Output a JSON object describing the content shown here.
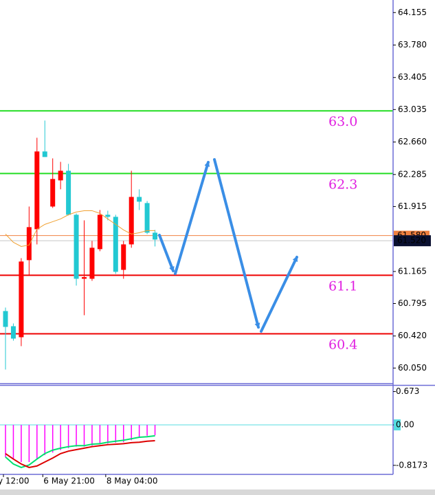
{
  "chart_data": [
    {
      "type": "candlestick",
      "categories": [
        "y 12:00",
        null,
        null,
        null,
        null,
        "6 May 21:00",
        null,
        null,
        null,
        null,
        null,
        null,
        null,
        "8 May 04:00",
        null,
        null,
        null,
        null,
        null,
        null
      ],
      "open": [
        60.708,
        60.533,
        60.406,
        61.296,
        61.653,
        62.551,
        61.915,
        62.217,
        62.328,
        61.82,
        61.081,
        61.081,
        61.423,
        61.82,
        61.796,
        61.184,
        61.478,
        62.026,
        61.955,
        61.613
      ],
      "high": [
        60.748,
        60.565,
        61.319,
        61.915,
        62.709,
        62.908,
        62.471,
        62.431,
        62.408,
        61.836,
        61.756,
        61.518,
        61.875,
        61.867,
        61.82,
        61.518,
        62.328,
        62.114,
        61.979,
        61.645
      ],
      "low": [
        60.033,
        60.366,
        60.303,
        61.121,
        61.478,
        62.487,
        61.899,
        62.114,
        61.812,
        61.002,
        60.66,
        61.057,
        61.399,
        61.756,
        61.137,
        61.081,
        61.439,
        61.875,
        61.597,
        61.454
      ],
      "close": [
        60.525,
        60.39,
        61.28,
        61.677,
        62.551,
        62.487,
        62.233,
        62.328,
        61.82,
        61.081,
        61.1,
        61.439,
        61.82,
        61.796,
        61.161,
        61.478,
        62.026,
        61.971,
        61.613,
        61.534
      ],
      "up_color": "#ff0000",
      "down_color": "#22c8d2",
      "ma_values": [
        61.597,
        61.502,
        61.454,
        61.47,
        61.653,
        61.709,
        61.74,
        61.772,
        61.82,
        61.852,
        61.867,
        61.867,
        61.836,
        61.772,
        61.709,
        61.645,
        61.597,
        61.613,
        61.637,
        61.637
      ],
      "ma_color": "#f0a030",
      "levels": [
        {
          "value": 63.02,
          "label": "63.0",
          "color": "#22dd22"
        },
        {
          "value": 62.296,
          "label": "62.3",
          "color": "#22dd22"
        },
        {
          "value": 61.121,
          "label": "61.1",
          "color": "#ee0000"
        },
        {
          "value": 60.446,
          "label": "60.4",
          "color": "#ee0000"
        }
      ],
      "ask": {
        "value": 61.58,
        "label": "61.580",
        "color": "#f08040"
      },
      "bid": {
        "value": 61.52,
        "label": "61.520",
        "color": "#c8c8c8"
      },
      "ylim": [
        59.87,
        64.3
      ],
      "yticks": [
        64.155,
        {
          "value": 63.78,
          "label": "63.780"
        },
        63.405,
        63.035,
        {
          "value": 62.66,
          "label": "62.660"
        },
        62.285,
        61.915,
        61.165,
        60.795,
        {
          "value": 60.42,
          "label": "60.420"
        },
        {
          "value": 60.05,
          "label": "60.050"
        }
      ]
    },
    {
      "type": "macd",
      "histogram": [
        -0.65,
        -0.69,
        -0.75,
        -0.75,
        -0.69,
        -0.61,
        -0.56,
        -0.51,
        -0.47,
        -0.44,
        -0.44,
        -0.42,
        -0.39,
        -0.38,
        -0.36,
        -0.35,
        -0.31,
        -0.25,
        -0.22,
        -0.21
      ],
      "hist_color": "#ff00ff",
      "lines": [
        {
          "color": "#00e070",
          "values": [
            -0.65,
            -0.79,
            -0.86,
            -0.81,
            -0.69,
            -0.58,
            -0.51,
            -0.47,
            -0.44,
            -0.42,
            -0.42,
            -0.39,
            -0.38,
            -0.35,
            -0.33,
            -0.31,
            -0.28,
            -0.25,
            -0.24,
            -0.22
          ]
        },
        {
          "color": "#dd0000",
          "values": [
            -0.58,
            -0.69,
            -0.79,
            -0.86,
            -0.83,
            -0.75,
            -0.67,
            -0.58,
            -0.53,
            -0.5,
            -0.47,
            -0.44,
            -0.42,
            -0.4,
            -0.39,
            -0.38,
            -0.36,
            -0.35,
            -0.33,
            -0.32
          ]
        }
      ],
      "ylim": [
        -1.0,
        0.806
      ],
      "yticks": [
        0.673,
        {
          "value": 0,
          "label": "0.00"
        },
        -0.8173
      ]
    }
  ]
}
